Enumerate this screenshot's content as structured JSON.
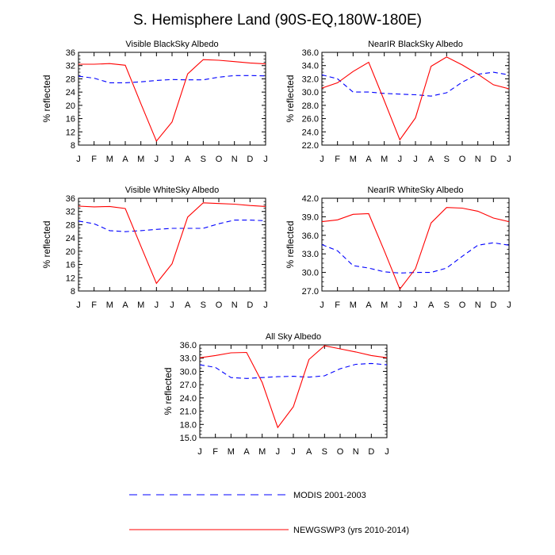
{
  "figure_title": "S. Hemisphere Land (90S-EQ,180W-180E)",
  "colors": {
    "modis": "#0000ff",
    "newgswp3": "#ff0000",
    "axis": "#000000"
  },
  "legend": {
    "entries": [
      {
        "label": "MODIS 2001-2003",
        "style": "dashed",
        "color": "#0000ff"
      },
      {
        "label": "NEWGSWP3 (yrs 2010-2014)",
        "style": "solid",
        "color": "#ff0000"
      }
    ]
  },
  "chart_data": [
    {
      "type": "line",
      "title": "Visible BlackSky Albedo",
      "xlabel": "",
      "ylabel": "% reflected",
      "categories": [
        "J",
        "F",
        "M",
        "A",
        "M",
        "J",
        "J",
        "A",
        "S",
        "O",
        "N",
        "D",
        "J"
      ],
      "ylim": [
        8,
        36
      ],
      "yticks": [
        8,
        12,
        16,
        20,
        24,
        28,
        32,
        36
      ],
      "ytick_labels": [
        "8",
        "12",
        "16",
        "20",
        "24",
        "28",
        "32",
        "36"
      ],
      "series": [
        {
          "name": "MODIS 2001-2003",
          "values": [
            28.8,
            28.2,
            26.8,
            26.8,
            27.1,
            27.5,
            27.8,
            27.7,
            27.7,
            28.5,
            29.0,
            29.0,
            28.9
          ]
        },
        {
          "name": "NEWGSWP3 (yrs 2010-2014)",
          "values": [
            32.4,
            32.4,
            32.6,
            32.1,
            20.5,
            9.2,
            15.0,
            29.5,
            33.8,
            33.6,
            33.2,
            32.8,
            32.5
          ]
        }
      ]
    },
    {
      "type": "line",
      "title": "NearIR BlackSky Albedo",
      "xlabel": "",
      "ylabel": "% reflected",
      "categories": [
        "J",
        "F",
        "M",
        "A",
        "M",
        "J",
        "J",
        "A",
        "S",
        "O",
        "N",
        "D",
        "J"
      ],
      "ylim": [
        22,
        36
      ],
      "yticks": [
        22,
        24,
        26,
        28,
        30,
        32,
        34,
        36
      ],
      "ytick_labels": [
        "22.0",
        "24.0",
        "26.0",
        "28.0",
        "30.0",
        "32.0",
        "34.0",
        "36.0"
      ],
      "series": [
        {
          "name": "MODIS 2001-2003",
          "values": [
            32.6,
            32.0,
            30.0,
            30.0,
            29.8,
            29.7,
            29.6,
            29.4,
            29.9,
            31.5,
            32.7,
            33.0,
            32.6
          ]
        },
        {
          "name": "NEWGSWP3 (yrs 2010-2014)",
          "values": [
            30.6,
            31.4,
            33.1,
            34.5,
            28.7,
            22.8,
            26.1,
            33.9,
            35.3,
            34.1,
            32.7,
            31.1,
            30.5
          ]
        }
      ]
    },
    {
      "type": "line",
      "title": "Visible WhiteSky Albedo",
      "xlabel": "",
      "ylabel": "% reflected",
      "categories": [
        "J",
        "F",
        "M",
        "A",
        "M",
        "J",
        "J",
        "A",
        "S",
        "O",
        "N",
        "D",
        "J"
      ],
      "ylim": [
        8,
        36
      ],
      "yticks": [
        8,
        12,
        16,
        20,
        24,
        28,
        32,
        36
      ],
      "ytick_labels": [
        "8",
        "12",
        "16",
        "20",
        "24",
        "28",
        "32",
        "36"
      ],
      "series": [
        {
          "name": "MODIS 2001-2003",
          "values": [
            29.1,
            28.3,
            26.2,
            25.9,
            26.2,
            26.6,
            26.9,
            26.9,
            26.9,
            28.3,
            29.4,
            29.4,
            29.2
          ]
        },
        {
          "name": "NEWGSWP3 (yrs 2010-2014)",
          "values": [
            33.6,
            33.4,
            33.5,
            32.9,
            21.5,
            10.3,
            16.2,
            30.3,
            34.6,
            34.4,
            34.2,
            33.8,
            33.5
          ]
        }
      ]
    },
    {
      "type": "line",
      "title": "NearIR WhiteSky Albedo",
      "xlabel": "",
      "ylabel": "% reflected",
      "categories": [
        "J",
        "F",
        "M",
        "A",
        "M",
        "J",
        "J",
        "A",
        "S",
        "O",
        "N",
        "D",
        "J"
      ],
      "ylim": [
        27,
        42
      ],
      "yticks": [
        27,
        30,
        33,
        36,
        39,
        42
      ],
      "ytick_labels": [
        "27.0",
        "30.0",
        "33.0",
        "36.0",
        "39.0",
        "42.0"
      ],
      "series": [
        {
          "name": "MODIS 2001-2003",
          "values": [
            34.5,
            33.5,
            31.1,
            30.7,
            30.1,
            29.9,
            30.0,
            30.0,
            30.7,
            32.6,
            34.4,
            34.8,
            34.4
          ]
        },
        {
          "name": "NEWGSWP3 (yrs 2010-2014)",
          "values": [
            38.2,
            38.5,
            39.4,
            39.5,
            33.5,
            27.3,
            30.6,
            38.0,
            40.5,
            40.4,
            39.9,
            38.8,
            38.2
          ]
        }
      ]
    },
    {
      "type": "line",
      "title": "All Sky Albedo",
      "xlabel": "",
      "ylabel": "% reflected",
      "categories": [
        "J",
        "F",
        "M",
        "A",
        "M",
        "J",
        "J",
        "A",
        "S",
        "O",
        "N",
        "D",
        "J"
      ],
      "ylim": [
        15,
        36
      ],
      "yticks": [
        15,
        18,
        21,
        24,
        27,
        30,
        33,
        36
      ],
      "ytick_labels": [
        "15.0",
        "18.0",
        "21.0",
        "24.0",
        "27.0",
        "30.0",
        "33.0",
        "36.0"
      ],
      "series": [
        {
          "name": "MODIS 2001-2003",
          "values": [
            31.5,
            30.9,
            28.6,
            28.4,
            28.6,
            28.8,
            28.9,
            28.7,
            29.0,
            30.6,
            31.6,
            31.8,
            31.5
          ]
        },
        {
          "name": "NEWGSWP3 (yrs 2010-2014)",
          "values": [
            33.1,
            33.6,
            34.2,
            34.3,
            27.5,
            17.3,
            22.0,
            32.7,
            35.8,
            35.1,
            34.4,
            33.6,
            33.1
          ]
        }
      ]
    }
  ]
}
